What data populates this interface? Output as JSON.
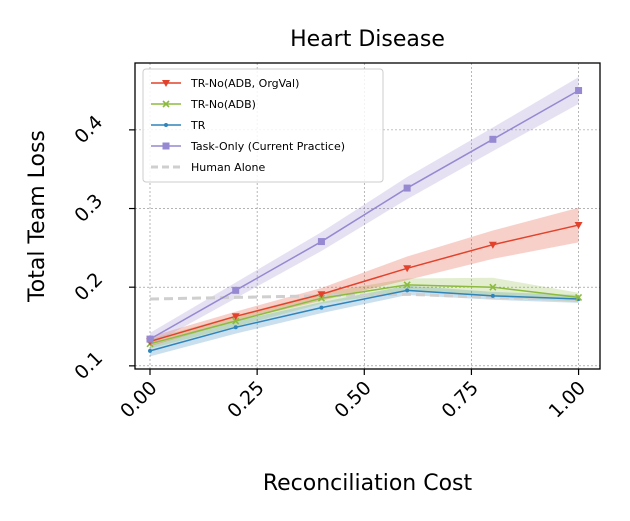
{
  "chart_data": {
    "type": "line",
    "title": "Heart Disease",
    "xlabel": "Reconciliation Cost",
    "ylabel": "Total Team Loss",
    "xlim": [
      -0.035,
      1.05
    ],
    "ylim": [
      0.096,
      0.485
    ],
    "xticks": [
      "0.00",
      "0.25",
      "0.50",
      "0.75",
      "1.00"
    ],
    "xtick_values": [
      0.0,
      0.25,
      0.5,
      0.75,
      1.0
    ],
    "yticks": [
      "0.1",
      "0.2",
      "0.3",
      "0.4"
    ],
    "ytick_values": [
      0.1,
      0.2,
      0.3,
      0.4
    ],
    "grid": true,
    "legend_position": "top-left",
    "x": [
      0.0,
      0.2,
      0.4,
      0.6,
      0.8,
      1.0
    ],
    "series": [
      {
        "name": "TR-No(ADB, OrgVal)",
        "color": "#e2422b",
        "marker": "triangle-down",
        "values": [
          0.131,
          0.163,
          0.191,
          0.224,
          0.254,
          0.279
        ],
        "band": [
          0.006,
          0.006,
          0.008,
          0.015,
          0.018,
          0.022
        ]
      },
      {
        "name": "TR-No(ADB)",
        "color": "#8cbb3f",
        "marker": "x",
        "values": [
          0.128,
          0.157,
          0.186,
          0.203,
          0.2,
          0.187
        ],
        "band": [
          0.006,
          0.007,
          0.007,
          0.008,
          0.012,
          0.006
        ]
      },
      {
        "name": "TR",
        "color": "#2f84ba",
        "marker": "dot",
        "values": [
          0.119,
          0.149,
          0.174,
          0.196,
          0.189,
          0.185
        ],
        "band": [
          0.007,
          0.008,
          0.007,
          0.006,
          0.005,
          0.005
        ]
      },
      {
        "name": "Task-Only (Current Practice)",
        "color": "#9688d1",
        "marker": "square",
        "values": [
          0.134,
          0.196,
          0.258,
          0.326,
          0.388,
          0.45
        ],
        "band": [
          0.008,
          0.01,
          0.012,
          0.014,
          0.015,
          0.017
        ]
      },
      {
        "name": "Human Alone",
        "color": "#cfcfcf",
        "marker": "none",
        "dashed": true,
        "values": [
          0.185,
          0.187,
          0.189,
          0.191,
          0.187,
          0.184
        ],
        "band": [
          0.0,
          0.0,
          0.0,
          0.0,
          0.0,
          0.0
        ]
      }
    ]
  }
}
